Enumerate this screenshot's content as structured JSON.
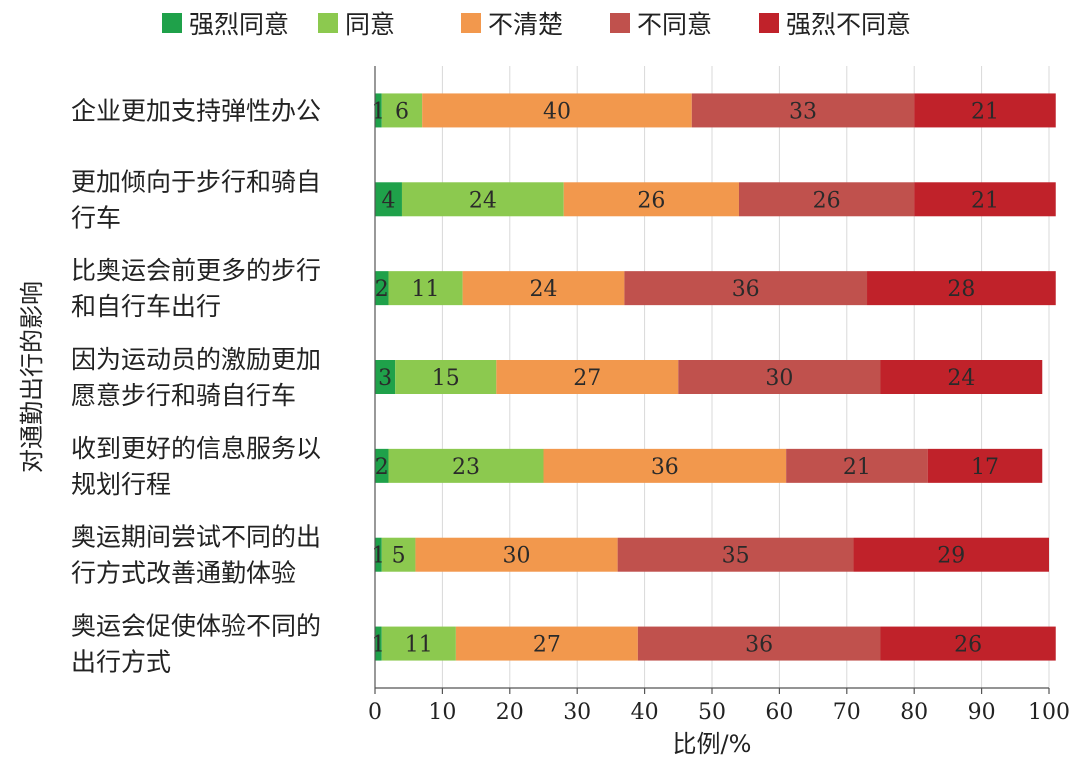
{
  "chart_data": {
    "type": "bar",
    "orientation": "horizontal",
    "stacked": true,
    "categories": [
      [
        "企业更加支持弹性办公"
      ],
      [
        "更加倾向于步行和骑自",
        "行车"
      ],
      [
        "比奥运会前更多的步行",
        "和自行车出行"
      ],
      [
        "因为运动员的激励更加",
        "愿意步行和骑自行车"
      ],
      [
        "收到更好的信息服务以",
        "规划行程"
      ],
      [
        "奥运期间尝试不同的出",
        "行方式改善通勤体验"
      ],
      [
        "奥运会促使体验不同的",
        "出行方式"
      ]
    ],
    "series": [
      {
        "name": "强烈同意",
        "color": "#1fa14a",
        "values": [
          1,
          4,
          2,
          3,
          2,
          1,
          1
        ]
      },
      {
        "name": "同意",
        "color": "#8cc94f",
        "values": [
          6,
          24,
          11,
          15,
          23,
          5,
          11
        ]
      },
      {
        "name": "不清楚",
        "color": "#f2984d",
        "values": [
          40,
          26,
          24,
          27,
          36,
          30,
          27
        ]
      },
      {
        "name": "不同意",
        "color": "#c0514d",
        "values": [
          33,
          26,
          36,
          30,
          21,
          35,
          36
        ]
      },
      {
        "name": "强烈不同意",
        "color": "#c0222a",
        "values": [
          21,
          21,
          28,
          24,
          17,
          29,
          26
        ]
      }
    ],
    "xlabel": "比例/%",
    "ylabel": "对通勤出行的影响",
    "xlim": [
      0,
      100
    ],
    "xticks": [
      "0",
      "10",
      "20",
      "30",
      "40",
      "50",
      "60",
      "70",
      "80",
      "90",
      "100"
    ],
    "grid": "vertical",
    "legend_position": "top"
  }
}
